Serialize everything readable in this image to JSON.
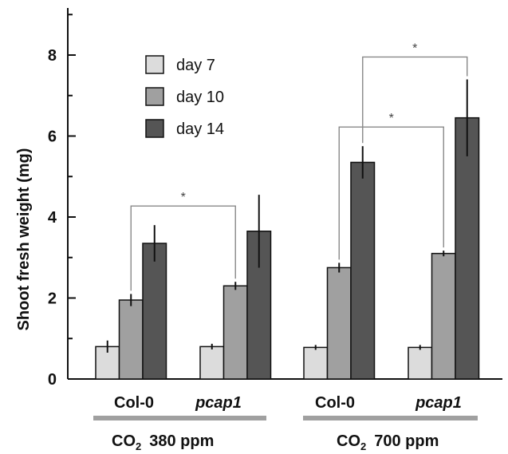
{
  "chart_data": {
    "type": "bar",
    "title": "",
    "ylabel": "Shoot fresh weight  (mg)",
    "ylim": [
      0,
      9
    ],
    "yticks": [
      0,
      2,
      4,
      6,
      8
    ],
    "groups": [
      {
        "label": "Col-0",
        "italic": false,
        "day7": 0.8,
        "day10": 1.95,
        "day14": 3.35,
        "err": [
          0.15,
          0.15,
          0.45
        ]
      },
      {
        "label": "pcap1",
        "italic": true,
        "day7": 0.8,
        "day10": 2.3,
        "day14": 3.65,
        "err": [
          0.07,
          0.1,
          0.9
        ]
      },
      {
        "label": "Col-0",
        "italic": false,
        "day7": 0.78,
        "day10": 2.75,
        "day14": 5.35,
        "err": [
          0.06,
          0.12,
          0.4
        ]
      },
      {
        "label": "pcap1",
        "italic": true,
        "day7": 0.78,
        "day10": 3.1,
        "day14": 6.45,
        "err": [
          0.06,
          0.07,
          0.95
        ]
      }
    ],
    "series": [
      {
        "name": "day 7",
        "color": "#dcdcdc"
      },
      {
        "name": "day 10",
        "color": "#a0a0a0"
      },
      {
        "name": "day 14",
        "color": "#555555"
      }
    ],
    "conditions": [
      {
        "prefix": "CO",
        "subscript": "2",
        "suffix": "380 ppm"
      },
      {
        "prefix": "CO",
        "subscript": "2",
        "suffix": "700 ppm"
      }
    ],
    "significance": [
      {
        "label": "*",
        "from_group": 0,
        "to_group": 1,
        "series_index": 1
      },
      {
        "label": "*",
        "from_group": 2,
        "to_group": 3,
        "series_index": 1
      },
      {
        "label": "*",
        "from_group": 2,
        "to_group": 3,
        "series_index": 2
      }
    ],
    "legend_position": "top-left",
    "grid": false
  }
}
